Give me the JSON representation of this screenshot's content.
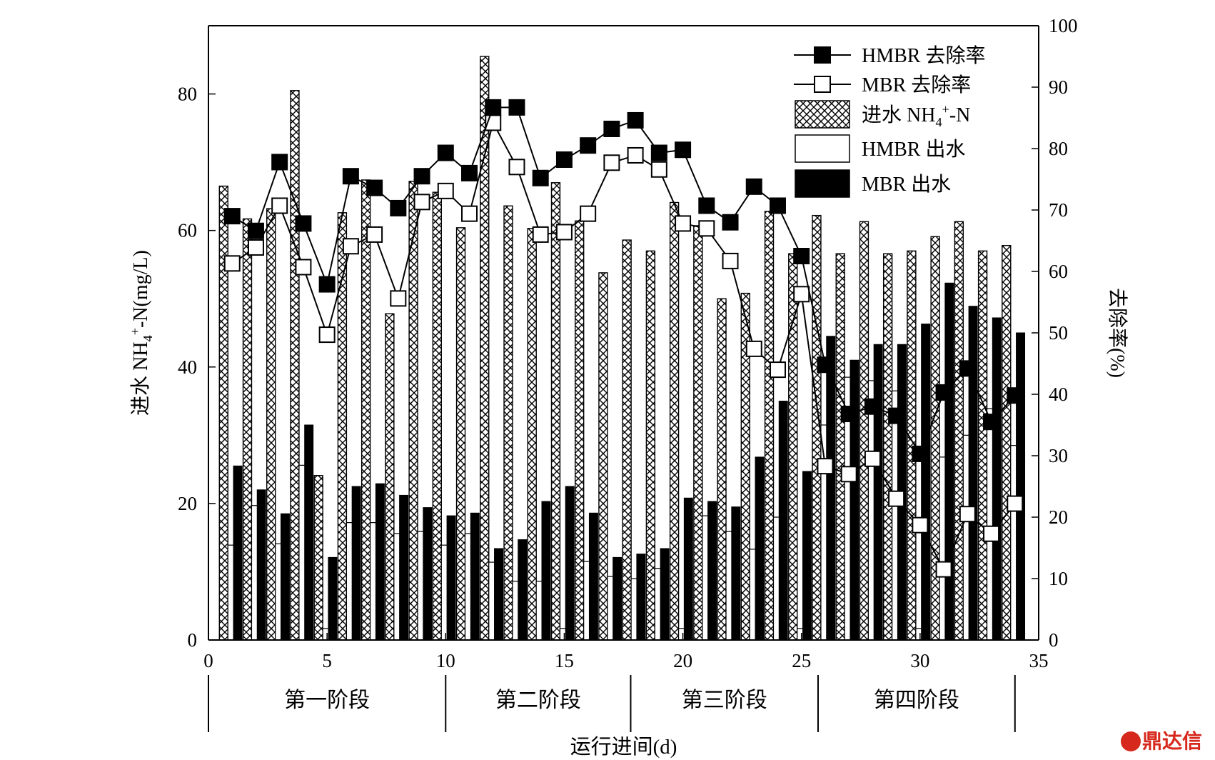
{
  "chart_data": {
    "type": "bar",
    "xlabel": "运行进间(d)",
    "ylabel_left_prefix": "进水 NH",
    "ylabel_left_sub": "4",
    "ylabel_left_sup": "+",
    "ylabel_left_suffix": "-N(mg/L)",
    "ylabel_right": "去除率(%)",
    "xlim": [
      0,
      35
    ],
    "ylim_left": [
      0,
      90
    ],
    "ylim_right": [
      0,
      100
    ],
    "x_ticks": [
      0,
      5,
      10,
      15,
      20,
      25,
      30,
      35
    ],
    "y_left_ticks": [
      0,
      20,
      40,
      60,
      80
    ],
    "y_right_ticks": [
      0,
      10,
      20,
      30,
      40,
      50,
      60,
      70,
      80,
      90,
      100
    ],
    "days": [
      1,
      2,
      3,
      4,
      5,
      6,
      7,
      8,
      9,
      10,
      11,
      12,
      13,
      14,
      15,
      16,
      17,
      18,
      19,
      20,
      21,
      22,
      23,
      24,
      25,
      26,
      27,
      28,
      29,
      30,
      31,
      32,
      33,
      34
    ],
    "series": [
      {
        "name": "进水 NH4+-N",
        "axis": "left",
        "kind": "bar",
        "values": [
          66.5,
          61.7,
          63.2,
          80.5,
          24.1,
          62.6,
          67.4,
          47.8,
          67.2,
          65.6,
          60.4,
          85.5,
          63.6,
          60.3,
          67.0,
          61.4,
          53.8,
          58.6,
          57.0,
          64.1,
          60.7,
          50.0,
          50.8,
          62.8,
          56.6,
          62.2,
          56.6,
          61.3,
          56.6,
          57.0,
          59.1,
          61.3,
          57.0,
          57.8
        ]
      },
      {
        "name": "HMBR 出水",
        "axis": "left",
        "kind": "bar",
        "values": [
          13.9,
          19.7,
          14.1,
          25.6,
          1.7,
          17.2,
          17.2,
          15.6,
          15.9,
          13.9,
          15.6,
          11.4,
          8.6,
          8.6,
          1.7,
          11.5,
          9.3,
          9.0,
          10.5,
          1.7,
          18.2,
          15.9,
          13.3,
          18.0,
          1.7,
          31.5,
          38.5,
          38.0,
          36.5,
          1.7,
          26.8,
          30.0,
          33.9,
          28.5
        ]
      },
      {
        "name": "MBR 出水",
        "axis": "left",
        "kind": "bar",
        "values": [
          25.5,
          22.0,
          18.5,
          31.5,
          12.1,
          22.5,
          22.9,
          21.2,
          19.4,
          18.2,
          18.6,
          13.4,
          14.7,
          20.3,
          22.5,
          18.6,
          12.1,
          12.6,
          13.4,
          20.8,
          20.3,
          19.5,
          26.8,
          35.0,
          24.7,
          44.5,
          41.0,
          43.3,
          43.3,
          46.3,
          52.3,
          48.9,
          47.2,
          45.0
        ]
      },
      {
        "name": "HMBR 去除率",
        "axis": "right",
        "kind": "line-filled",
        "values": [
          69.0,
          66.6,
          77.8,
          67.8,
          57.9,
          75.5,
          73.6,
          70.3,
          75.5,
          79.3,
          76.0,
          86.7,
          86.7,
          75.2,
          78.2,
          80.5,
          83.2,
          84.6,
          79.3,
          79.8,
          70.7,
          68.0,
          73.8,
          70.7,
          62.5,
          44.8,
          36.8,
          38.0,
          36.5,
          30.3,
          40.3,
          44.2,
          35.5,
          39.8
        ]
      },
      {
        "name": "MBR 去除率",
        "axis": "right",
        "kind": "line-open",
        "values": [
          61.3,
          63.9,
          70.7,
          60.7,
          49.7,
          64.1,
          66.0,
          55.6,
          71.3,
          73.1,
          69.4,
          84.2,
          77.0,
          66.0,
          66.4,
          69.4,
          77.7,
          78.9,
          76.6,
          67.8,
          67.0,
          61.7,
          47.4,
          44.0,
          56.3,
          28.3,
          27.0,
          29.5,
          23.0,
          18.7,
          11.5,
          20.5,
          17.3,
          22.2
        ]
      }
    ],
    "legend": [
      {
        "label_prefix": "HMBR 去除率",
        "label_sub": "",
        "label_sup": "",
        "label_suffix": "",
        "marker": "filled-square-line"
      },
      {
        "label_prefix": "MBR 去除率",
        "label_sub": "",
        "label_sup": "",
        "label_suffix": "",
        "marker": "open-square-line"
      },
      {
        "label_prefix": "进水 NH",
        "label_sub": "4",
        "label_sup": "+",
        "label_suffix": "-N",
        "marker": "crosshatch-box"
      },
      {
        "label_prefix": "HMBR 出水",
        "label_sub": "",
        "label_sup": "",
        "label_suffix": "",
        "marker": "white-box"
      },
      {
        "label_prefix": "MBR 出水",
        "label_sub": "",
        "label_sup": "",
        "label_suffix": "",
        "marker": "black-box"
      }
    ],
    "legend_position": "top-right",
    "stages": [
      {
        "label": "第一阶段",
        "start": 0,
        "end": 10
      },
      {
        "label": "第二阶段",
        "start": 10,
        "end": 17.8
      },
      {
        "label": "第三阶段",
        "start": 17.8,
        "end": 25.7
      },
      {
        "label": "第四阶段",
        "start": 25.7,
        "end": 34
      }
    ],
    "colors": {
      "line": "#000000",
      "filled": "#000000",
      "open": "#ffffff",
      "hatch": "#000000"
    },
    "grid": false
  },
  "watermark": {
    "text": "鼎达信",
    "color": "#d6281c"
  }
}
